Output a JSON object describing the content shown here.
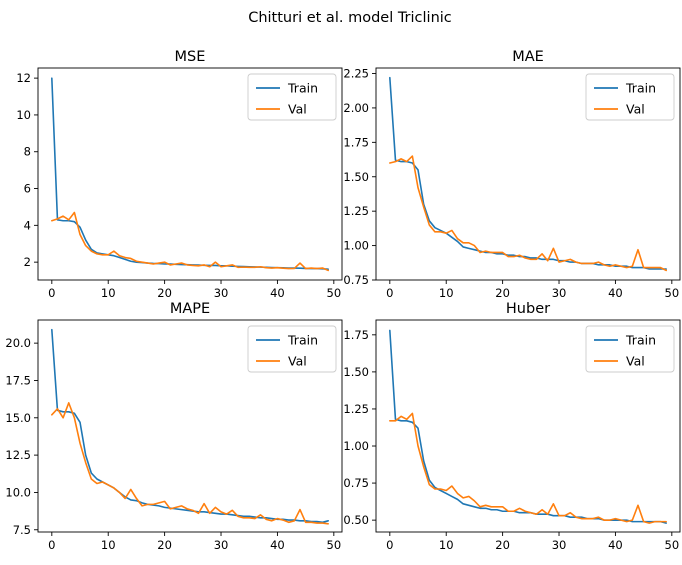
{
  "figure": {
    "suptitle": "Chitturi et al. model Triclinic"
  },
  "colors": {
    "train": "#1f77b4",
    "val": "#ff7f0e",
    "axis": "#000000"
  },
  "chart_data": [
    {
      "type": "line",
      "title": "MSE",
      "xlabel": "",
      "ylabel": "",
      "xlim": [
        -2.45,
        51.45
      ],
      "ylim": [
        1.03,
        12.55
      ],
      "xticks": [
        0,
        10,
        20,
        30,
        40,
        50
      ],
      "yticks": [
        2,
        4,
        6,
        8,
        10,
        12
      ],
      "ytick_labels": [
        "2",
        "4",
        "6",
        "8",
        "10",
        "12"
      ],
      "grid": false,
      "legend_position": "top-right",
      "x": [
        0,
        1,
        2,
        3,
        4,
        5,
        6,
        7,
        8,
        9,
        10,
        11,
        12,
        13,
        14,
        15,
        16,
        17,
        18,
        19,
        20,
        21,
        22,
        23,
        24,
        25,
        26,
        27,
        28,
        29,
        30,
        31,
        32,
        33,
        34,
        35,
        36,
        37,
        38,
        39,
        40,
        41,
        42,
        43,
        44,
        45,
        46,
        47,
        48,
        49
      ],
      "series": [
        {
          "name": "Train",
          "values": [
            12.0,
            4.3,
            4.25,
            4.25,
            4.2,
            3.9,
            3.2,
            2.7,
            2.5,
            2.45,
            2.4,
            2.35,
            2.25,
            2.15,
            2.05,
            2.0,
            1.98,
            1.95,
            1.93,
            1.92,
            1.9,
            1.9,
            1.88,
            1.87,
            1.86,
            1.85,
            1.84,
            1.83,
            1.82,
            1.82,
            1.8,
            1.8,
            1.78,
            1.77,
            1.76,
            1.75,
            1.74,
            1.73,
            1.72,
            1.71,
            1.7,
            1.69,
            1.68,
            1.68,
            1.67,
            1.66,
            1.65,
            1.65,
            1.64,
            1.62
          ]
        },
        {
          "name": "Val",
          "values": [
            4.25,
            4.35,
            4.5,
            4.3,
            4.7,
            3.5,
            2.9,
            2.6,
            2.45,
            2.4,
            2.4,
            2.6,
            2.35,
            2.25,
            2.2,
            2.05,
            2.0,
            1.95,
            1.9,
            1.95,
            2.0,
            1.85,
            1.9,
            1.95,
            1.85,
            1.82,
            1.8,
            1.85,
            1.75,
            2.0,
            1.75,
            1.8,
            1.85,
            1.72,
            1.73,
            1.72,
            1.72,
            1.75,
            1.7,
            1.68,
            1.7,
            1.67,
            1.65,
            1.66,
            1.95,
            1.65,
            1.68,
            1.65,
            1.68,
            1.55
          ]
        }
      ]
    },
    {
      "type": "line",
      "title": "MAE",
      "xlabel": "",
      "ylabel": "",
      "xlim": [
        -2.45,
        51.45
      ],
      "ylim": [
        0.75,
        2.29
      ],
      "xticks": [
        0,
        10,
        20,
        30,
        40,
        50
      ],
      "yticks": [
        0.75,
        1.0,
        1.25,
        1.5,
        1.75,
        2.0,
        2.25
      ],
      "ytick_labels": [
        "0.75",
        "1.00",
        "1.25",
        "1.50",
        "1.75",
        "2.00",
        "2.25"
      ],
      "grid": false,
      "legend_position": "top-right",
      "x": [
        0,
        1,
        2,
        3,
        4,
        5,
        6,
        7,
        8,
        9,
        10,
        11,
        12,
        13,
        14,
        15,
        16,
        17,
        18,
        19,
        20,
        21,
        22,
        23,
        24,
        25,
        26,
        27,
        28,
        29,
        30,
        31,
        32,
        33,
        34,
        35,
        36,
        37,
        38,
        39,
        40,
        41,
        42,
        43,
        44,
        45,
        46,
        47,
        48,
        49
      ],
      "series": [
        {
          "name": "Train",
          "values": [
            2.22,
            1.62,
            1.61,
            1.61,
            1.6,
            1.55,
            1.3,
            1.18,
            1.13,
            1.11,
            1.09,
            1.06,
            1.03,
            0.99,
            0.98,
            0.97,
            0.96,
            0.95,
            0.95,
            0.94,
            0.94,
            0.93,
            0.93,
            0.92,
            0.92,
            0.91,
            0.91,
            0.9,
            0.9,
            0.9,
            0.89,
            0.89,
            0.88,
            0.88,
            0.87,
            0.87,
            0.87,
            0.86,
            0.86,
            0.86,
            0.85,
            0.85,
            0.85,
            0.84,
            0.84,
            0.84,
            0.83,
            0.83,
            0.83,
            0.83
          ]
        },
        {
          "name": "Val",
          "values": [
            1.6,
            1.61,
            1.63,
            1.61,
            1.65,
            1.42,
            1.28,
            1.15,
            1.1,
            1.1,
            1.09,
            1.11,
            1.05,
            1.02,
            1.02,
            1.0,
            0.95,
            0.96,
            0.95,
            0.95,
            0.95,
            0.92,
            0.92,
            0.93,
            0.91,
            0.9,
            0.9,
            0.94,
            0.89,
            0.98,
            0.88,
            0.89,
            0.9,
            0.88,
            0.87,
            0.87,
            0.87,
            0.88,
            0.86,
            0.85,
            0.86,
            0.85,
            0.84,
            0.85,
            0.97,
            0.84,
            0.84,
            0.84,
            0.84,
            0.82
          ]
        }
      ]
    },
    {
      "type": "line",
      "title": "MAPE",
      "xlabel": "",
      "ylabel": "",
      "xlim": [
        -2.45,
        51.45
      ],
      "ylim": [
        7.35,
        21.55
      ],
      "xticks": [
        0,
        10,
        20,
        30,
        40,
        50
      ],
      "yticks": [
        7.5,
        10.0,
        12.5,
        15.0,
        17.5,
        20.0
      ],
      "ytick_labels": [
        "7.5",
        "10.0",
        "12.5",
        "15.0",
        "17.5",
        "20.0"
      ],
      "grid": false,
      "legend_position": "top-right",
      "x": [
        0,
        1,
        2,
        3,
        4,
        5,
        6,
        7,
        8,
        9,
        10,
        11,
        12,
        13,
        14,
        15,
        16,
        17,
        18,
        19,
        20,
        21,
        22,
        23,
        24,
        25,
        26,
        27,
        28,
        29,
        30,
        31,
        32,
        33,
        34,
        35,
        36,
        37,
        38,
        39,
        40,
        41,
        42,
        43,
        44,
        45,
        46,
        47,
        48,
        49
      ],
      "series": [
        {
          "name": "Train",
          "values": [
            20.9,
            15.5,
            15.4,
            15.4,
            15.3,
            14.7,
            12.5,
            11.3,
            10.9,
            10.7,
            10.5,
            10.3,
            10.0,
            9.7,
            9.5,
            9.45,
            9.3,
            9.2,
            9.15,
            9.1,
            9.0,
            8.95,
            8.9,
            8.85,
            8.8,
            8.75,
            8.7,
            8.7,
            8.65,
            8.6,
            8.55,
            8.55,
            8.5,
            8.45,
            8.4,
            8.4,
            8.35,
            8.3,
            8.3,
            8.25,
            8.2,
            8.2,
            8.15,
            8.15,
            8.1,
            8.1,
            8.05,
            8.05,
            8.0,
            8.1
          ]
        },
        {
          "name": "Val",
          "values": [
            15.2,
            15.6,
            15.0,
            16.0,
            15.0,
            13.3,
            12.0,
            10.9,
            10.6,
            10.7,
            10.5,
            10.3,
            10.0,
            9.6,
            10.2,
            9.6,
            9.1,
            9.2,
            9.2,
            9.3,
            9.4,
            8.9,
            9.0,
            9.1,
            8.9,
            8.8,
            8.6,
            9.25,
            8.6,
            9.0,
            8.7,
            8.55,
            8.8,
            8.4,
            8.3,
            8.3,
            8.25,
            8.5,
            8.2,
            8.1,
            8.25,
            8.15,
            8.0,
            8.1,
            8.85,
            8.0,
            8.0,
            7.95,
            7.95,
            7.9
          ]
        }
      ]
    },
    {
      "type": "line",
      "title": "Huber",
      "xlabel": "",
      "ylabel": "",
      "xlim": [
        -2.45,
        51.45
      ],
      "ylim": [
        0.42,
        1.85
      ],
      "xticks": [
        0,
        10,
        20,
        30,
        40,
        50
      ],
      "yticks": [
        0.5,
        0.75,
        1.0,
        1.25,
        1.5,
        1.75
      ],
      "ytick_labels": [
        "0.50",
        "0.75",
        "1.00",
        "1.25",
        "1.50",
        "1.75"
      ],
      "grid": false,
      "legend_position": "top-right",
      "x": [
        0,
        1,
        2,
        3,
        4,
        5,
        6,
        7,
        8,
        9,
        10,
        11,
        12,
        13,
        14,
        15,
        16,
        17,
        18,
        19,
        20,
        21,
        22,
        23,
        24,
        25,
        26,
        27,
        28,
        29,
        30,
        31,
        32,
        33,
        34,
        35,
        36,
        37,
        38,
        39,
        40,
        41,
        42,
        43,
        44,
        45,
        46,
        47,
        48,
        49
      ],
      "series": [
        {
          "name": "Train",
          "values": [
            1.78,
            1.18,
            1.17,
            1.17,
            1.16,
            1.12,
            0.9,
            0.77,
            0.72,
            0.7,
            0.68,
            0.66,
            0.64,
            0.61,
            0.6,
            0.59,
            0.58,
            0.58,
            0.57,
            0.57,
            0.56,
            0.56,
            0.56,
            0.55,
            0.55,
            0.55,
            0.54,
            0.54,
            0.54,
            0.53,
            0.53,
            0.53,
            0.52,
            0.52,
            0.52,
            0.51,
            0.51,
            0.51,
            0.5,
            0.5,
            0.5,
            0.5,
            0.5,
            0.49,
            0.49,
            0.49,
            0.49,
            0.49,
            0.49,
            0.48
          ]
        },
        {
          "name": "Val",
          "values": [
            1.17,
            1.17,
            1.2,
            1.18,
            1.22,
            1.0,
            0.86,
            0.74,
            0.71,
            0.71,
            0.7,
            0.73,
            0.68,
            0.65,
            0.66,
            0.63,
            0.59,
            0.6,
            0.59,
            0.59,
            0.59,
            0.56,
            0.56,
            0.58,
            0.56,
            0.55,
            0.54,
            0.57,
            0.54,
            0.61,
            0.53,
            0.53,
            0.55,
            0.52,
            0.51,
            0.51,
            0.51,
            0.52,
            0.5,
            0.5,
            0.51,
            0.5,
            0.49,
            0.5,
            0.6,
            0.49,
            0.48,
            0.49,
            0.49,
            0.49
          ]
        }
      ]
    }
  ]
}
